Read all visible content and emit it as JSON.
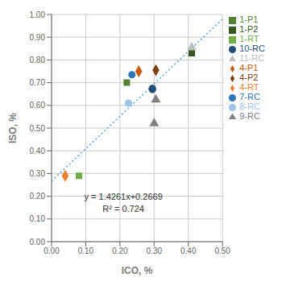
{
  "chart_data": {
    "type": "scatter",
    "title": "",
    "x_label": "ICO, %",
    "y_label": "ISO, %",
    "xlim": [
      0.0,
      0.5
    ],
    "ylim": [
      0.0,
      1.0
    ],
    "xticks": [
      {
        "value": 0.0,
        "label": "0.00"
      },
      {
        "value": 0.1,
        "label": "0.10"
      },
      {
        "value": 0.2,
        "label": "0.20"
      },
      {
        "value": 0.3,
        "label": "0.30"
      },
      {
        "value": 0.4,
        "label": "0.40"
      },
      {
        "value": 0.5,
        "label": "0.50"
      }
    ],
    "yticks": [
      {
        "value": 0.0,
        "label": "0.00"
      },
      {
        "value": 0.1,
        "label": "0.10"
      },
      {
        "value": 0.2,
        "label": "0.20"
      },
      {
        "value": 0.3,
        "label": "0.30"
      },
      {
        "value": 0.4,
        "label": "0.40"
      },
      {
        "value": 0.5,
        "label": "0.50"
      },
      {
        "value": 0.6,
        "label": "0.60"
      },
      {
        "value": 0.7,
        "label": "0.70"
      },
      {
        "value": 0.8,
        "label": "0.80"
      },
      {
        "value": 0.9,
        "label": "0.90"
      },
      {
        "value": 1.0,
        "label": "1.00"
      }
    ],
    "grid": true,
    "legend": "right",
    "annotations": [
      "y = 1.4261x+0.2669",
      "R² = 0.724"
    ],
    "trendline": {
      "x": [
        0.0,
        0.5
      ],
      "y": [
        0.2669,
        0.97995
      ],
      "color": "#5ba3d9",
      "line_style": "dotted"
    },
    "series": [
      {
        "name": "1-RT",
        "marker": "square",
        "color": "#70ad47",
        "x": [
          0.08
        ],
        "values": [
          0.29
        ]
      },
      {
        "name": "1-P1",
        "marker": "square",
        "color": "#548235",
        "x": [
          0.22
        ],
        "values": [
          0.7
        ]
      },
      {
        "name": "1-P2",
        "marker": "square",
        "color": "#375623",
        "x": [
          0.41
        ],
        "values": [
          0.83
        ]
      },
      {
        "name": "4-RT",
        "marker": "diamond",
        "color": "#ed7d31",
        "x": [
          0.04
        ],
        "values": [
          0.29
        ]
      },
      {
        "name": "4-P1",
        "marker": "diamond",
        "color": "#c55a11",
        "x": [
          0.255
        ],
        "values": [
          0.75
        ]
      },
      {
        "name": "4-P2",
        "marker": "diamond",
        "color": "#7b3f11",
        "x": [
          0.305
        ],
        "values": [
          0.755
        ]
      },
      {
        "name": "7-RC",
        "marker": "circle",
        "color": "#2e75b6",
        "x": [
          0.235
        ],
        "values": [
          0.735
        ]
      },
      {
        "name": "8-RC",
        "marker": "circle",
        "color": "#9dc3e6",
        "x": [
          0.225
        ],
        "values": [
          0.61
        ]
      },
      {
        "name": "9-RC",
        "marker": "triangle",
        "color": "#808080",
        "x": [
          0.3,
          0.305
        ],
        "values": [
          0.52,
          0.625
        ]
      },
      {
        "name": "10-RC",
        "marker": "circle",
        "color": "#1f4e79",
        "x": [
          0.295,
          0.295
        ],
        "values": [
          0.67,
          0.675
        ]
      },
      {
        "name": "11-RC",
        "marker": "triangle",
        "color": "#bfbfbf",
        "x": [
          0.41
        ],
        "values": [
          0.855
        ]
      }
    ]
  }
}
